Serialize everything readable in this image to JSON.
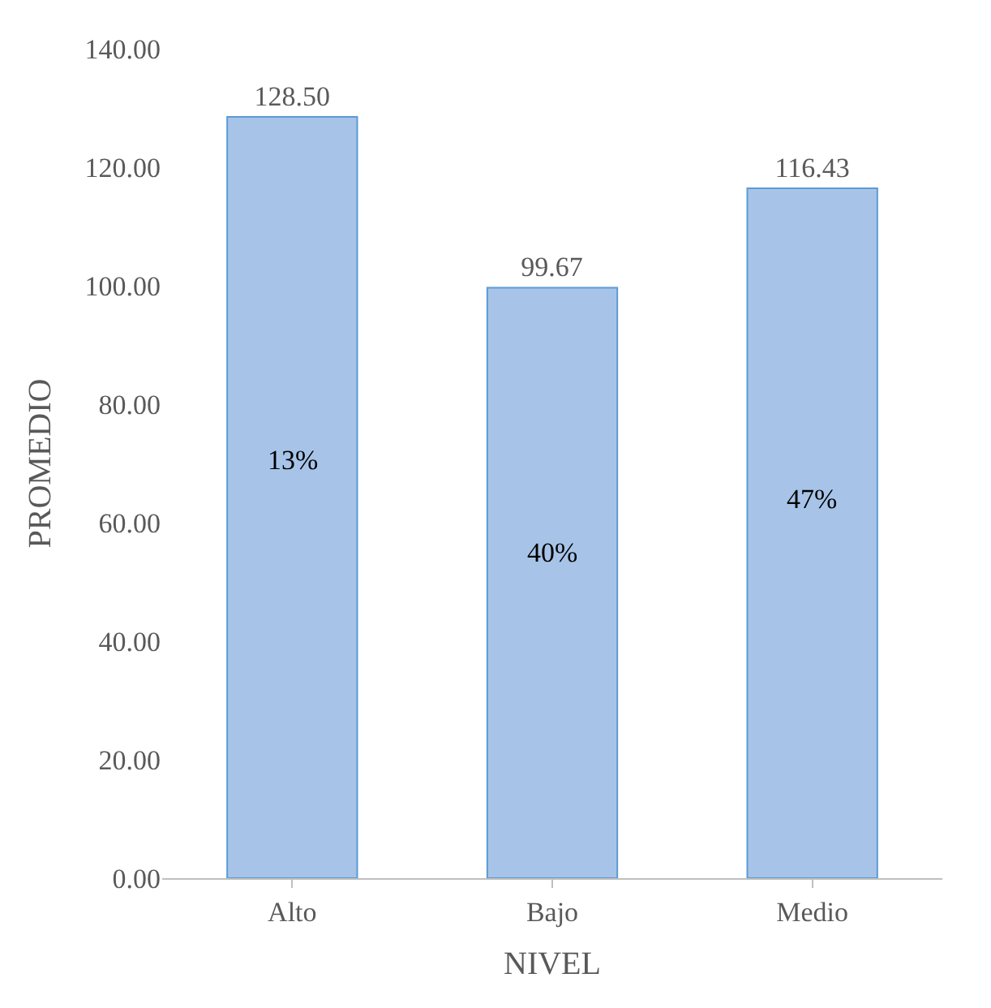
{
  "chart_data": {
    "type": "bar",
    "xlabel": "NIVEL",
    "ylabel": "PROMEDIO",
    "categories": [
      "Alto",
      "Bajo",
      "Medio"
    ],
    "values": [
      128.5,
      99.67,
      116.43
    ],
    "value_labels": [
      "128.50",
      "99.67",
      "116.43"
    ],
    "color": "#a7c4e8",
    "ylim": [
      0,
      140
    ],
    "yticks": [
      {
        "value": 0,
        "label": "0.00"
      },
      {
        "value": 20,
        "label": "20.00"
      },
      {
        "value": 40,
        "label": "40.00"
      },
      {
        "value": 60,
        "label": "60.00"
      },
      {
        "value": 80,
        "label": "80.00"
      },
      {
        "value": 100,
        "label": "100.00"
      },
      {
        "value": 120,
        "label": "120.00"
      },
      {
        "value": 140,
        "label": "140.00"
      }
    ],
    "annotations": [
      "13%",
      "40%",
      "47%"
    ],
    "grid": false,
    "legend": false
  }
}
